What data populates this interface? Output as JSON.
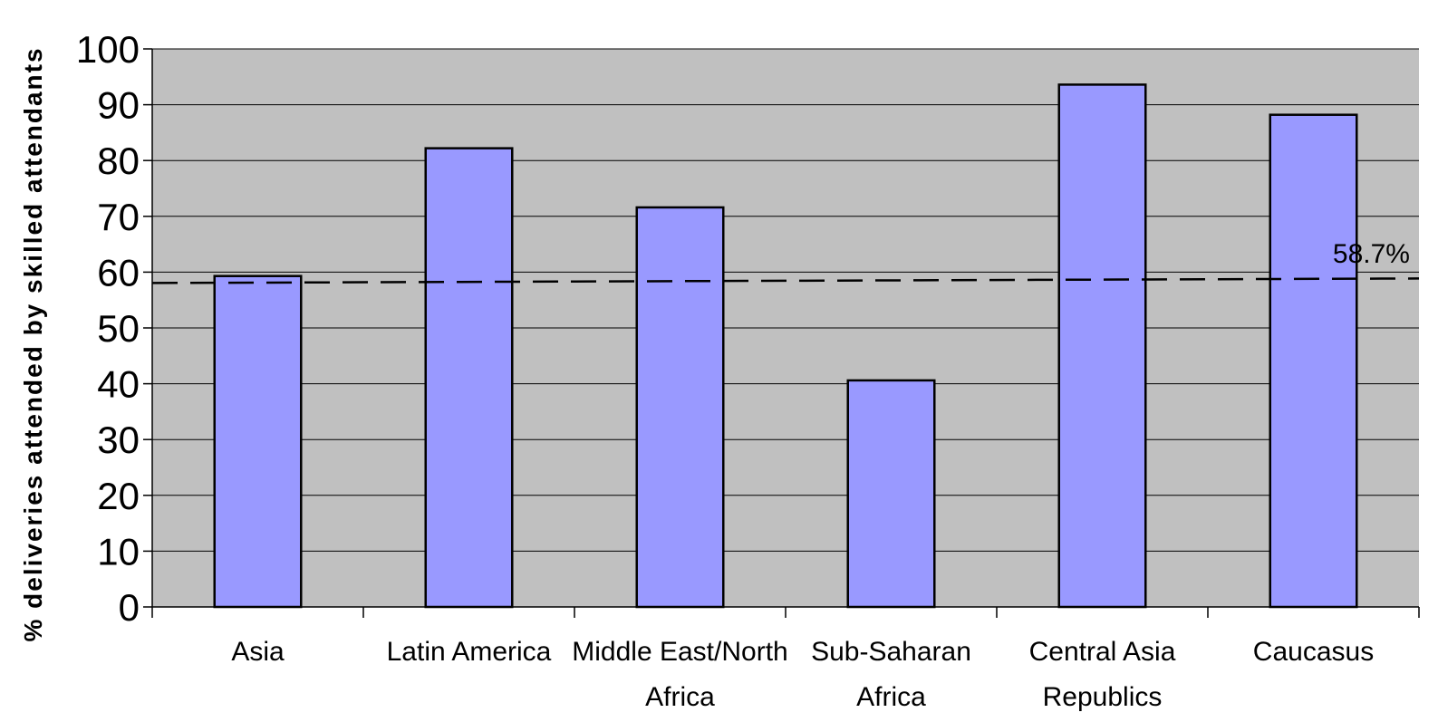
{
  "chart_data": {
    "type": "bar",
    "categories": [
      [
        "Asia"
      ],
      [
        "Latin America"
      ],
      [
        "Middle East/North",
        "Africa"
      ],
      [
        "Sub-Saharan",
        "Africa"
      ],
      [
        "Central Asia",
        "Republics"
      ],
      [
        "Caucasus"
      ]
    ],
    "values": [
      59.3,
      82.2,
      71.6,
      40.6,
      93.6,
      88.2
    ],
    "title": "",
    "xlabel": "",
    "ylabel": "% deliveries attended by skilled attendants",
    "ylim": [
      0,
      100
    ],
    "yticks": [
      0,
      10,
      20,
      30,
      40,
      50,
      60,
      70,
      80,
      90,
      100
    ],
    "grid": true,
    "reference_line": {
      "value": 58.7,
      "label": "58.7%",
      "style": "dashed"
    },
    "colors": {
      "bar": "#9999ff",
      "plot_background": "#c0c0c0",
      "bar_outline": "#000000"
    }
  }
}
